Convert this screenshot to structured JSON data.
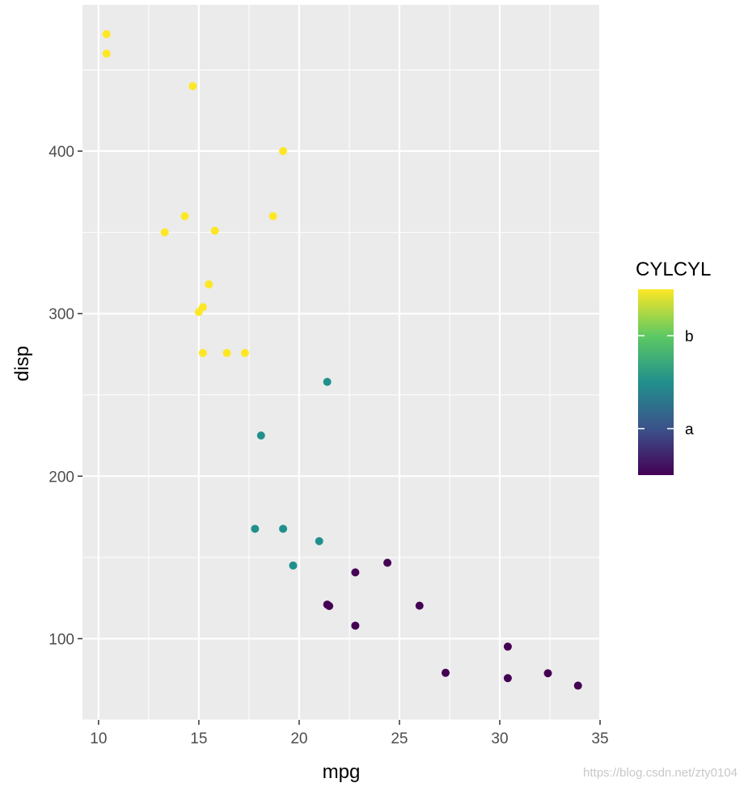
{
  "chart_data": {
    "type": "scatter",
    "title": "",
    "xlabel": "mpg",
    "ylabel": "disp",
    "xlim": [
      9.2,
      35.0
    ],
    "ylim": [
      50,
      490
    ],
    "x_ticks": [
      10,
      15,
      20,
      25,
      30,
      35
    ],
    "y_ticks": [
      100,
      200,
      300,
      400
    ],
    "grid": true,
    "legend": {
      "title": "CYLCYL",
      "type": "colorbar",
      "placement": "right",
      "labels": [
        {
          "label": "a",
          "value": 5.0
        },
        {
          "label": "b",
          "value": 7.0
        }
      ],
      "range": [
        4,
        8
      ],
      "palette": [
        "#440154",
        "#3b528b",
        "#21908c",
        "#5dc963",
        "#fde725"
      ]
    },
    "colors": {
      "c4": "#440154",
      "c6": "#21908c",
      "c8": "#fde725"
    },
    "points": [
      {
        "x": 10.4,
        "y": 472,
        "c": 8
      },
      {
        "x": 10.4,
        "y": 460,
        "c": 8
      },
      {
        "x": 14.7,
        "y": 440,
        "c": 8
      },
      {
        "x": 19.2,
        "y": 400,
        "c": 8
      },
      {
        "x": 14.3,
        "y": 360,
        "c": 8
      },
      {
        "x": 18.7,
        "y": 360,
        "c": 8
      },
      {
        "x": 13.3,
        "y": 350,
        "c": 8
      },
      {
        "x": 15.8,
        "y": 351,
        "c": 8
      },
      {
        "x": 15.5,
        "y": 318,
        "c": 8
      },
      {
        "x": 15.2,
        "y": 304,
        "c": 8
      },
      {
        "x": 15.0,
        "y": 301,
        "c": 8
      },
      {
        "x": 15.2,
        "y": 275.8,
        "c": 8
      },
      {
        "x": 16.4,
        "y": 275.8,
        "c": 8
      },
      {
        "x": 17.3,
        "y": 275.8,
        "c": 8
      },
      {
        "x": 21.4,
        "y": 258,
        "c": 6
      },
      {
        "x": 18.1,
        "y": 225,
        "c": 6
      },
      {
        "x": 17.8,
        "y": 167.6,
        "c": 6
      },
      {
        "x": 19.2,
        "y": 167.6,
        "c": 6
      },
      {
        "x": 21.0,
        "y": 160,
        "c": 6
      },
      {
        "x": 19.7,
        "y": 145,
        "c": 6
      },
      {
        "x": 24.4,
        "y": 146.7,
        "c": 4
      },
      {
        "x": 22.8,
        "y": 140.8,
        "c": 4
      },
      {
        "x": 21.4,
        "y": 121,
        "c": 4
      },
      {
        "x": 21.5,
        "y": 120.1,
        "c": 4
      },
      {
        "x": 26.0,
        "y": 120.3,
        "c": 4
      },
      {
        "x": 22.8,
        "y": 108,
        "c": 4
      },
      {
        "x": 30.4,
        "y": 95.1,
        "c": 4
      },
      {
        "x": 27.3,
        "y": 79,
        "c": 4
      },
      {
        "x": 32.4,
        "y": 78.7,
        "c": 4
      },
      {
        "x": 30.4,
        "y": 75.7,
        "c": 4
      },
      {
        "x": 33.9,
        "y": 71.1,
        "c": 4
      }
    ]
  },
  "watermark": "https://blog.csdn.net/zty0104"
}
